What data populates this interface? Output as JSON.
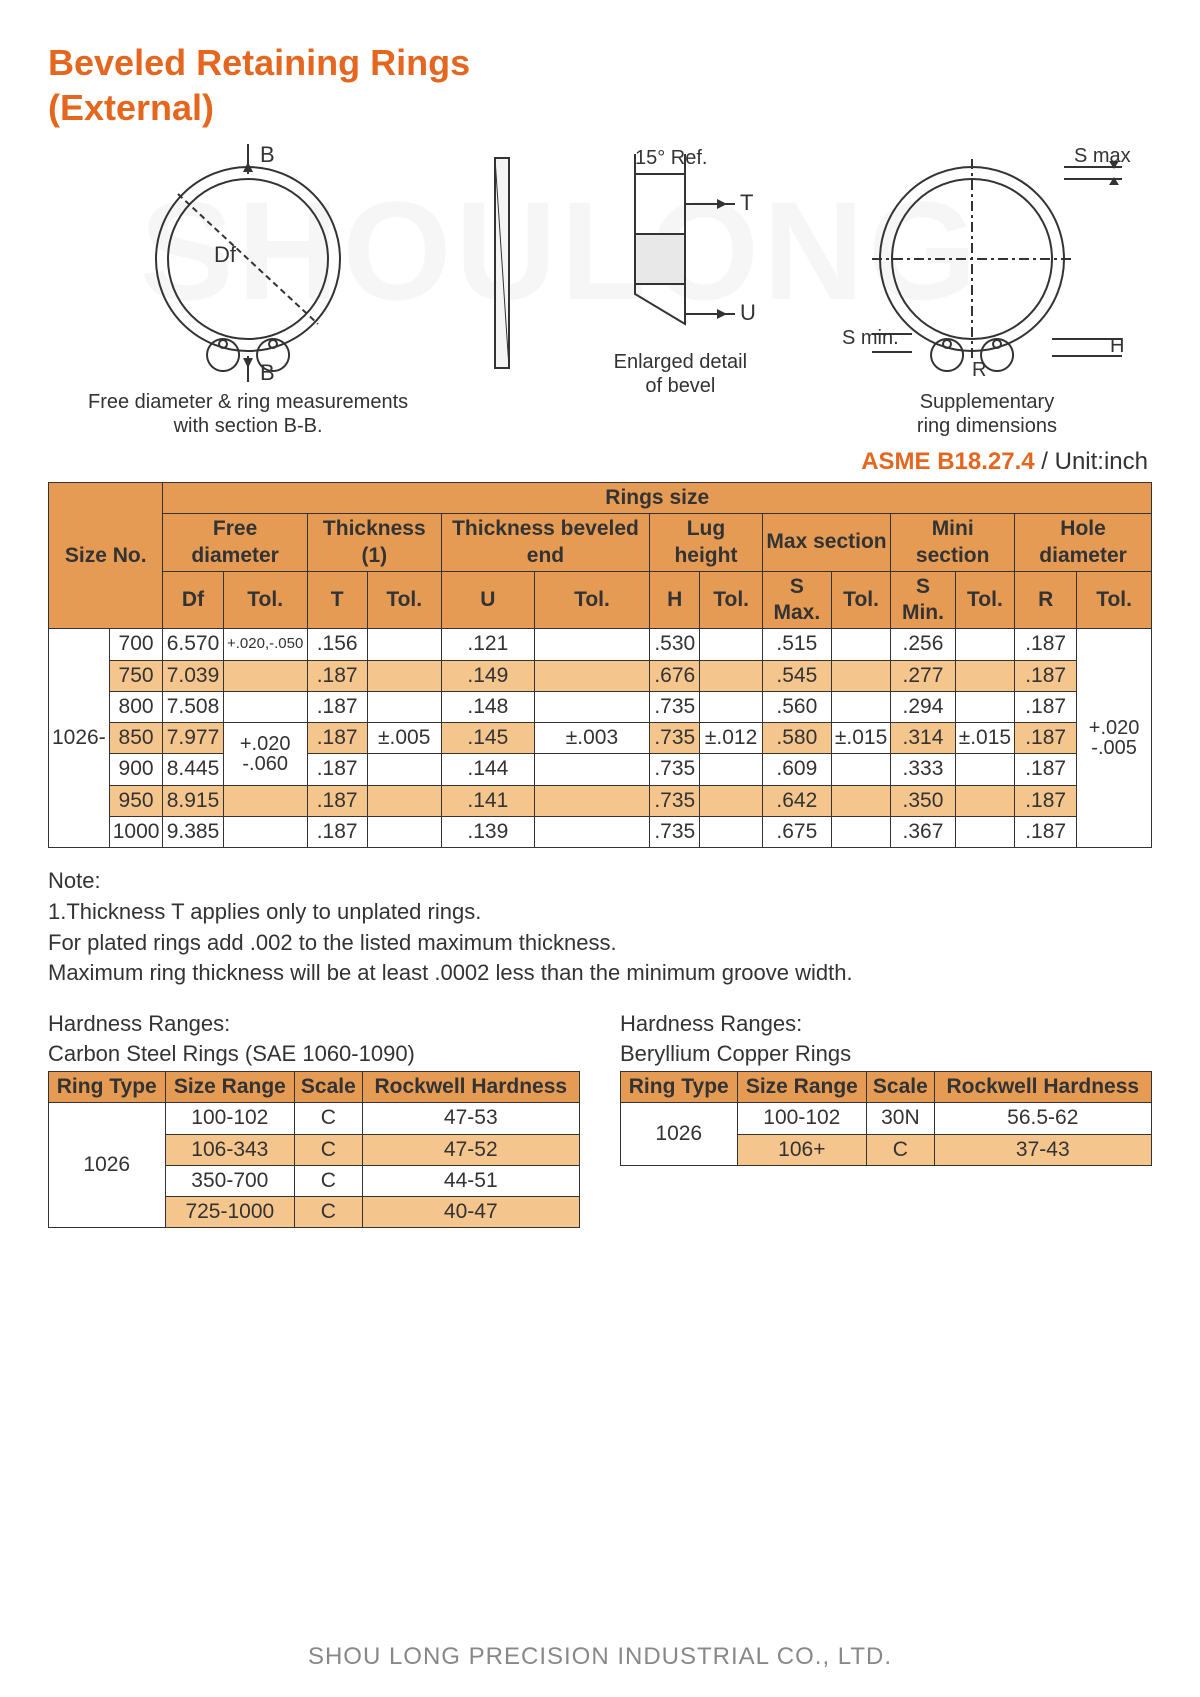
{
  "title_line1": "Beveled Retaining Rings",
  "title_line2": "(External)",
  "watermark": "SHOULONG",
  "diagram": {
    "left_caption": "Free diameter & ring measurements\nwith section B-B.",
    "mid_caption": "Enlarged detail\nof bevel",
    "right_caption": "Supplementary\nring dimensions",
    "labels": {
      "B_top": "B",
      "B_bot": "B",
      "Df": "Df",
      "angle": "15° Ref.",
      "T": "T",
      "U": "U",
      "Smax": "S max.",
      "Smin": "S min.",
      "H": "H",
      "R": "R"
    }
  },
  "spec": {
    "code": "ASME B18.27.4",
    "unit": " / Unit:inch"
  },
  "main_table": {
    "header_top": "Rings size",
    "size_no": "Size No.",
    "groups": [
      "Free diameter",
      "Thickness (1)",
      "Thickness beveled end",
      "Lug height",
      "Max section",
      "Mini section",
      "Hole diameter"
    ],
    "subs": [
      "Df",
      "Tol.",
      "T",
      "Tol.",
      "U",
      "Tol.",
      "H",
      "Tol.",
      "S Max.",
      "Tol.",
      "S Min.",
      "Tol.",
      "R",
      "Tol."
    ],
    "series": "1026-",
    "col_tol_top": [
      "+.020,-.050"
    ],
    "rows": [
      {
        "n": "700",
        "df": "6.570",
        "t": ".156",
        "u": ".121",
        "h": ".530",
        "smax": ".515",
        "smin": ".256",
        "r": ".187"
      },
      {
        "n": "750",
        "df": "7.039",
        "t": ".187",
        "u": ".149",
        "h": ".676",
        "smax": ".545",
        "smin": ".277",
        "r": ".187"
      },
      {
        "n": "800",
        "df": "7.508",
        "t": ".187",
        "u": ".148",
        "h": ".735",
        "smax": ".560",
        "smin": ".294",
        "r": ".187"
      },
      {
        "n": "850",
        "df": "7.977",
        "t": ".187",
        "u": ".145",
        "h": ".735",
        "smax": ".580",
        "smin": ".314",
        "r": ".187"
      },
      {
        "n": "900",
        "df": "8.445",
        "t": ".187",
        "u": ".144",
        "h": ".735",
        "smax": ".609",
        "smin": ".333",
        "r": ".187"
      },
      {
        "n": "950",
        "df": "8.915",
        "t": ".187",
        "u": ".141",
        "h": ".735",
        "smax": ".642",
        "smin": ".350",
        "r": ".187"
      },
      {
        "n": "1000",
        "df": "9.385",
        "t": ".187",
        "u": ".139",
        "h": ".735",
        "smax": ".675",
        "smin": ".367",
        "r": ".187"
      }
    ],
    "tol_df_upper": "+.020",
    "tol_df_lower": "-.060",
    "tol_t": "±.005",
    "tol_u": "±.003",
    "tol_h": "±.012",
    "tol_smax": "±.015",
    "tol_smin": "±.015",
    "tol_r_upper": "+.020",
    "tol_r_lower": "-.005"
  },
  "notes": {
    "heading": "Note:",
    "line1": "1.Thickness T applies only to unplated rings.",
    "line2": "For plated rings add .002 to the listed maximum thickness.",
    "line3": "Maximum ring thickness will be at least .0002 less than the minimum groove width."
  },
  "hardness": {
    "left": {
      "title1": "Hardness Ranges:",
      "title2": "Carbon Steel Rings (SAE 1060-1090)",
      "cols": [
        "Ring Type",
        "Size Range",
        "Scale",
        "Rockwell Hardness"
      ],
      "ring_type": "1026",
      "rows": [
        {
          "range": "100-102",
          "scale": "C",
          "rh": "47-53"
        },
        {
          "range": "106-343",
          "scale": "C",
          "rh": "47-52"
        },
        {
          "range": "350-700",
          "scale": "C",
          "rh": "44-51"
        },
        {
          "range": "725-1000",
          "scale": "C",
          "rh": "40-47"
        }
      ]
    },
    "right": {
      "title1": "Hardness Ranges:",
      "title2": "Beryllium Copper Rings",
      "cols": [
        "Ring Type",
        "Size Range",
        "Scale",
        "Rockwell Hardness"
      ],
      "ring_type": "1026",
      "rows": [
        {
          "range": "100-102",
          "scale": "30N",
          "rh": "56.5-62"
        },
        {
          "range": "106+",
          "scale": "C",
          "rh": "37-43"
        }
      ]
    }
  },
  "footer": "SHOU LONG PRECISION INDUSTRIAL CO., LTD."
}
